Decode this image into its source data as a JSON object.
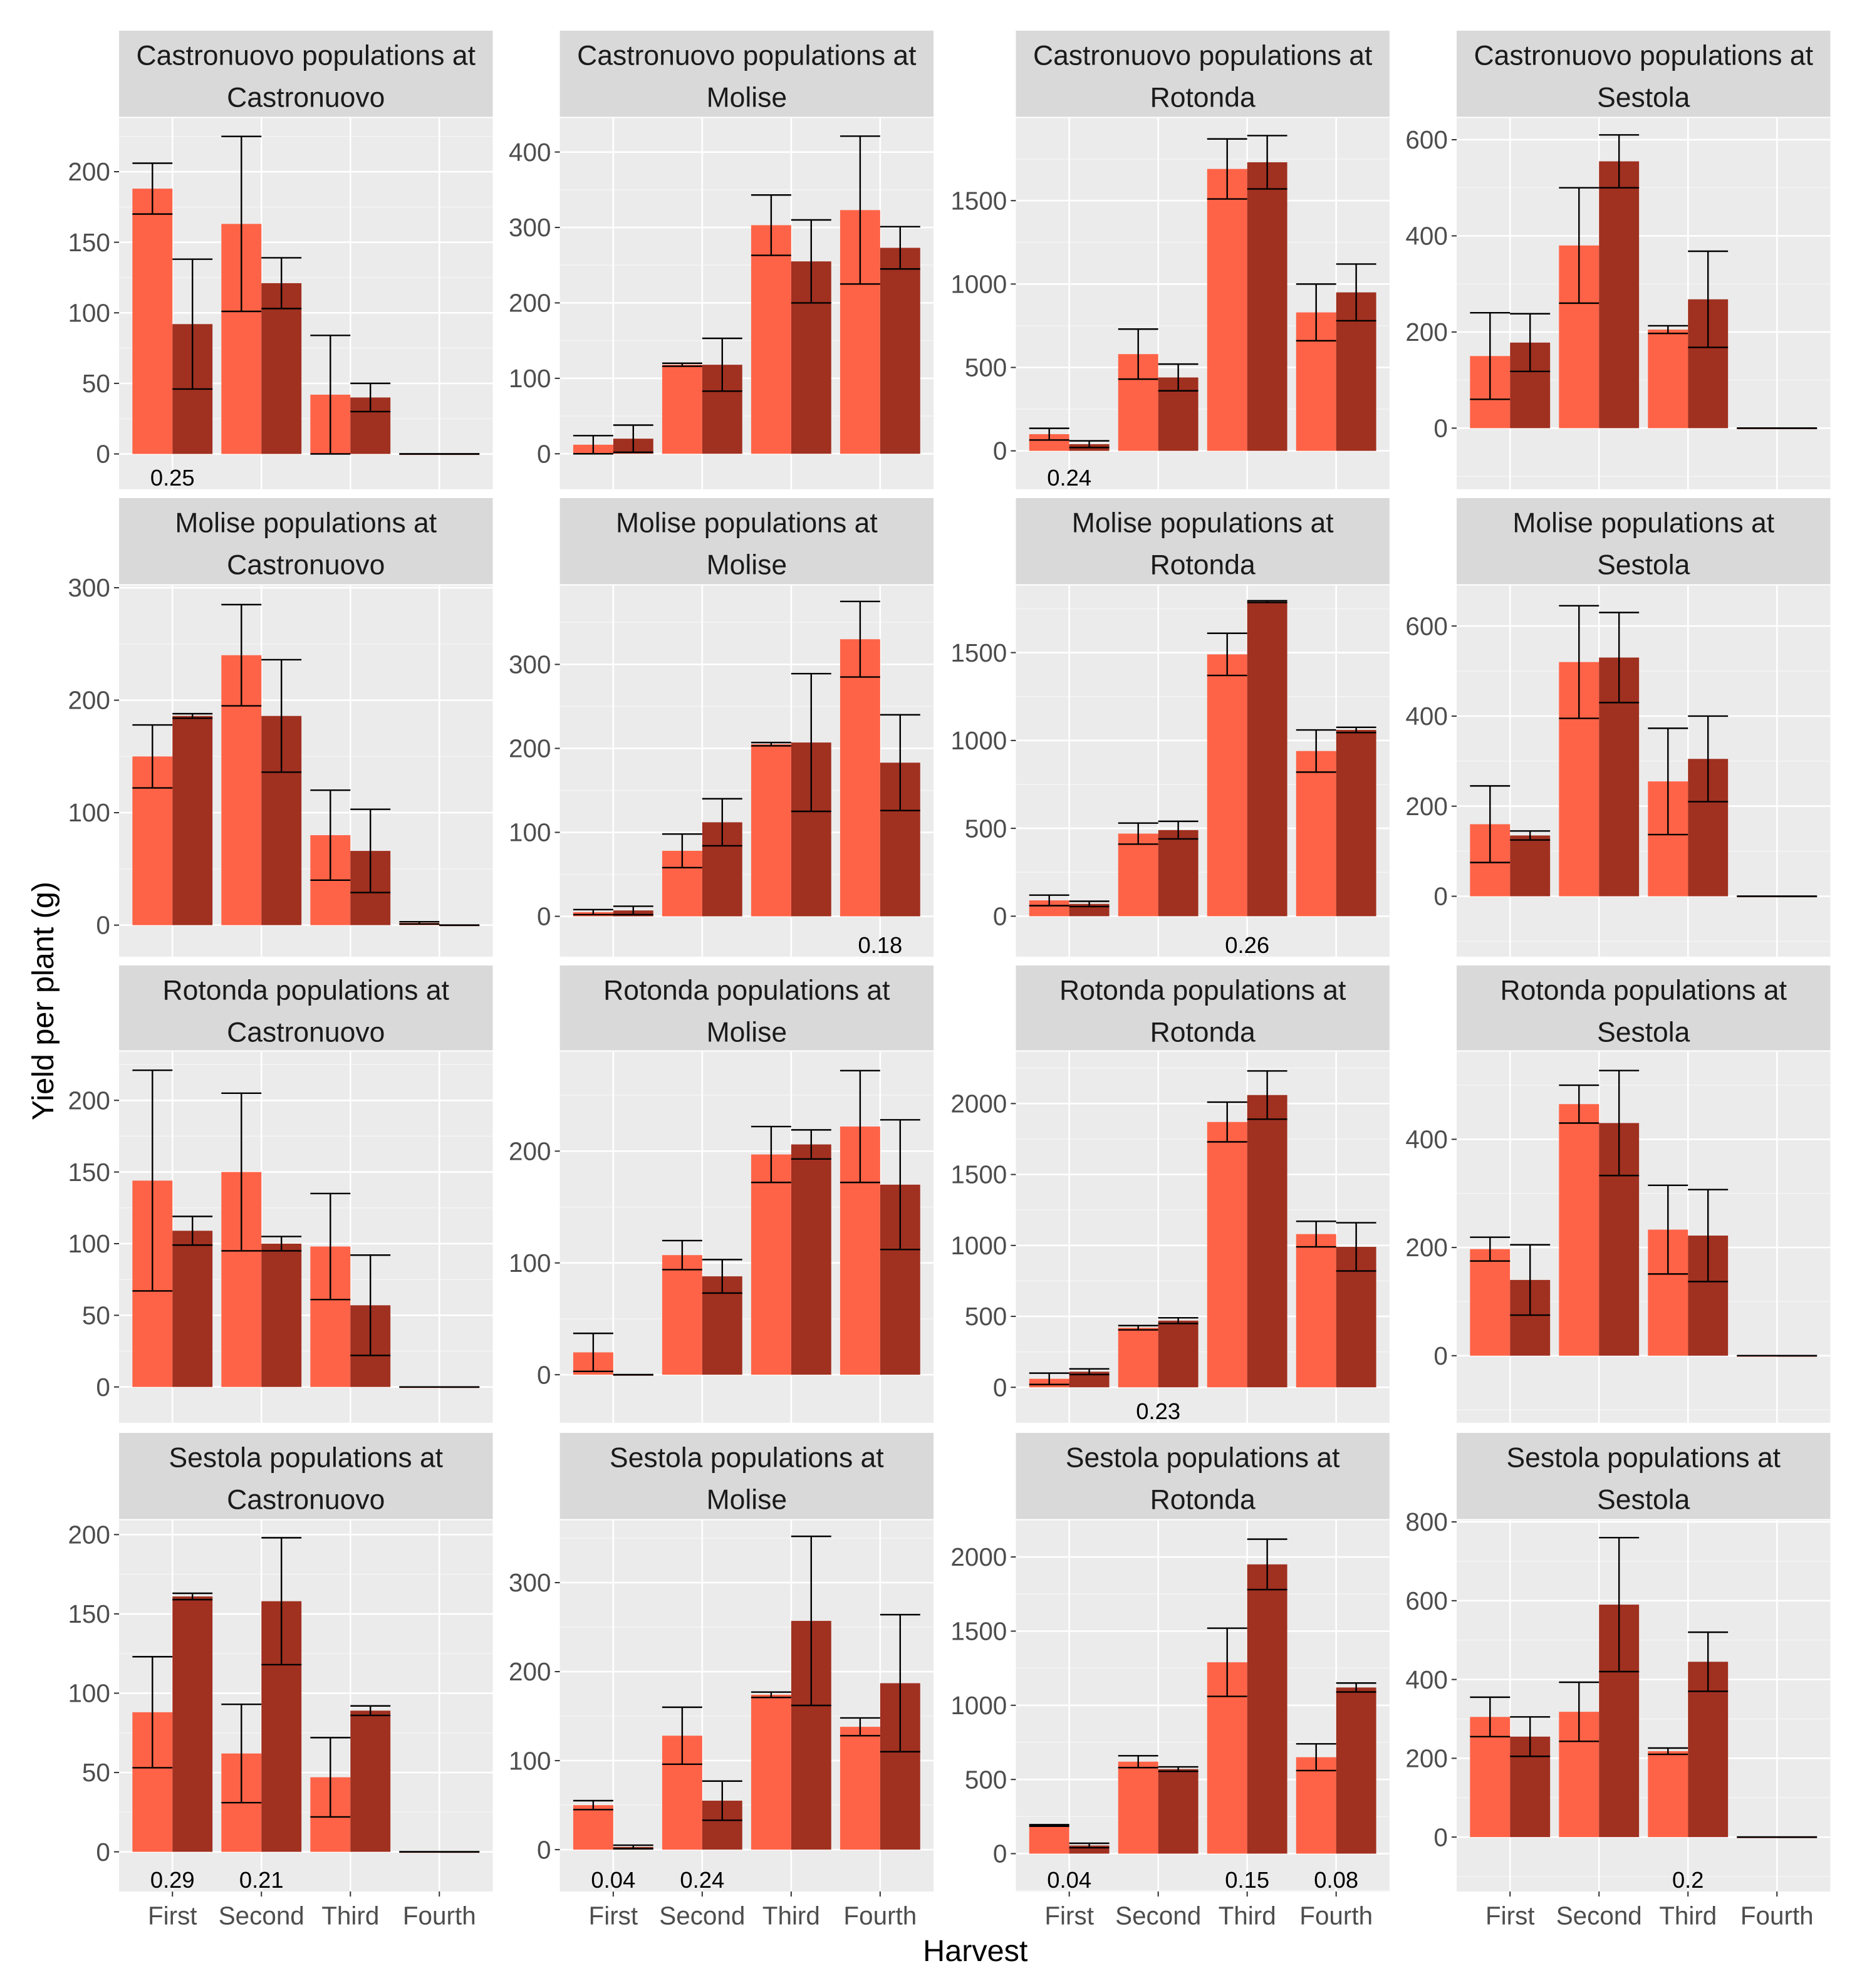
{
  "chart_data": {
    "type": "bar",
    "layout": "facet-grid 4x4",
    "xlabel": "Harvest",
    "ylabel": "Yield per plant (g)",
    "categories": [
      "First",
      "Second",
      "Third",
      "Fourth"
    ],
    "series_colors": [
      "#FF6347",
      "#A03020"
    ],
    "panel_bg": "#EBEBEB",
    "strip_bg": "#D9D9D9",
    "grid": true,
    "panels": [
      {
        "title_line1": "Castronuovo populations at",
        "title_line2": "Castronuovo",
        "ylim": [
          -25,
          238
        ],
        "tick_step": 50,
        "series": [
          {
            "values": [
              188,
              163,
              42,
              0
            ],
            "errors": [
              18,
              62,
              42,
              0
            ]
          },
          {
            "values": [
              92,
              121,
              40,
              0
            ],
            "errors": [
              46,
              18,
              10,
              0
            ]
          }
        ],
        "annotations": [
          {
            "category": "First",
            "text": "0.25"
          }
        ]
      },
      {
        "title_line1": "Castronuovo populations at",
        "title_line2": "Molise",
        "ylim": [
          -47,
          445
        ],
        "tick_step": 100,
        "series": [
          {
            "values": [
              12,
              118,
              303,
              323
            ],
            "errors": [
              12,
              2,
              40,
              98
            ]
          },
          {
            "values": [
              20,
              118,
              255,
              273
            ],
            "errors": [
              18,
              35,
              55,
              28
            ]
          }
        ],
        "annotations": []
      },
      {
        "title_line1": "Castronuovo populations at",
        "title_line2": "Rotonda",
        "ylim": [
          -230,
          1995
        ],
        "tick_step": 500,
        "series": [
          {
            "values": [
              100,
              580,
              1690,
              830
            ],
            "errors": [
              35,
              150,
              180,
              170
            ]
          },
          {
            "values": [
              40,
              440,
              1730,
              950
            ],
            "errors": [
              20,
              80,
              160,
              170
            ]
          }
        ],
        "annotations": [
          {
            "category": "First",
            "text": "0.24"
          }
        ]
      },
      {
        "title_line1": "Castronuovo populations at",
        "title_line2": "Sestola",
        "ylim": [
          -127,
          645
        ],
        "tick_step": 200,
        "series": [
          {
            "values": [
              150,
              380,
              205,
              0
            ],
            "errors": [
              90,
              120,
              8,
              0
            ]
          },
          {
            "values": [
              178,
              555,
              268,
              0
            ],
            "errors": [
              60,
              55,
              100,
              0
            ]
          }
        ],
        "annotations": []
      },
      {
        "title_line1": "Molise populations at",
        "title_line2": "Castronuovo",
        "ylim": [
          -28,
          302
        ],
        "tick_step": 100,
        "series": [
          {
            "values": [
              150,
              240,
              80,
              2
            ],
            "errors": [
              28,
              45,
              40,
              1
            ]
          },
          {
            "values": [
              186,
              186,
              66,
              0
            ],
            "errors": [
              2,
              50,
              37,
              0
            ]
          }
        ],
        "annotations": []
      },
      {
        "title_line1": "Molise populations at",
        "title_line2": "Molise",
        "ylim": [
          -48,
          394
        ],
        "tick_step": 100,
        "series": [
          {
            "values": [
              5,
              78,
              205,
              330
            ],
            "errors": [
              3,
              20,
              2,
              45
            ]
          },
          {
            "values": [
              7,
              112,
              207,
              183
            ],
            "errors": [
              5,
              28,
              82,
              57
            ]
          }
        ],
        "annotations": [
          {
            "category": "Fourth",
            "text": "0.18"
          }
        ]
      },
      {
        "title_line1": "Molise populations at",
        "title_line2": "Rotonda",
        "ylim": [
          -230,
          1882
        ],
        "tick_step": 500,
        "series": [
          {
            "values": [
              90,
              470,
              1490,
              940
            ],
            "errors": [
              30,
              60,
              120,
              120
            ]
          },
          {
            "values": [
              70,
              490,
              1790,
              1060
            ],
            "errors": [
              15,
              50,
              5,
              15
            ]
          }
        ],
        "annotations": [
          {
            "category": "Third",
            "text": "0.26"
          }
        ]
      },
      {
        "title_line1": "Molise populations at",
        "title_line2": "Sestola",
        "ylim": [
          -134,
          690
        ],
        "tick_step": 200,
        "series": [
          {
            "values": [
              160,
              520,
              255,
              0
            ],
            "errors": [
              85,
              125,
              118,
              0
            ]
          },
          {
            "values": [
              135,
              530,
              305,
              0
            ],
            "errors": [
              10,
              100,
              95,
              0
            ]
          }
        ],
        "annotations": []
      },
      {
        "title_line1": "Rotonda populations at",
        "title_line2": "Castronuovo",
        "ylim": [
          -25,
          234
        ],
        "tick_step": 50,
        "series": [
          {
            "values": [
              144,
              150,
              98,
              0
            ],
            "errors": [
              77,
              55,
              37,
              0
            ]
          },
          {
            "values": [
              109,
              100,
              57,
              0
            ],
            "errors": [
              10,
              5,
              35,
              0
            ]
          }
        ],
        "annotations": []
      },
      {
        "title_line1": "Rotonda populations at",
        "title_line2": "Molise",
        "ylim": [
          -43,
          289
        ],
        "tick_step": 100,
        "series": [
          {
            "values": [
              20,
              107,
              197,
              222
            ],
            "errors": [
              17,
              13,
              25,
              50
            ]
          },
          {
            "values": [
              0,
              88,
              206,
              170
            ],
            "errors": [
              0,
              15,
              13,
              58
            ]
          }
        ],
        "annotations": []
      },
      {
        "title_line1": "Rotonda populations at",
        "title_line2": "Rotonda",
        "ylim": [
          -250,
          2366
        ],
        "tick_step": 500,
        "series": [
          {
            "values": [
              60,
              420,
              1870,
              1080
            ],
            "errors": [
              40,
              15,
              140,
              90
            ]
          },
          {
            "values": [
              110,
              470,
              2060,
              990
            ],
            "errors": [
              20,
              20,
              170,
              170
            ]
          }
        ],
        "annotations": [
          {
            "category": "Second",
            "text": "0.23"
          }
        ]
      },
      {
        "title_line1": "Rotonda populations at",
        "title_line2": "Sestola",
        "ylim": [
          -124,
          562
        ],
        "tick_step": 200,
        "series": [
          {
            "values": [
              197,
              465,
              233,
              0
            ],
            "errors": [
              22,
              35,
              82,
              0
            ]
          },
          {
            "values": [
              140,
              430,
              222,
              0
            ],
            "errors": [
              65,
              97,
              85,
              0
            ]
          }
        ],
        "annotations": []
      },
      {
        "title_line1": "Sestola populations at",
        "title_line2": "Castronuovo",
        "ylim": [
          -25,
          209
        ],
        "tick_step": 50,
        "series": [
          {
            "values": [
              88,
              62,
              47,
              0
            ],
            "errors": [
              35,
              31,
              25,
              0
            ]
          },
          {
            "values": [
              161,
              158,
              89,
              0
            ],
            "errors": [
              2,
              40,
              3,
              0
            ]
          }
        ],
        "annotations": [
          {
            "category": "First",
            "text": "0.29"
          },
          {
            "category": "Second",
            "text": "0.21"
          }
        ]
      },
      {
        "title_line1": "Sestola populations at",
        "title_line2": "Molise",
        "ylim": [
          -47,
          370
        ],
        "tick_step": 100,
        "series": [
          {
            "values": [
              50,
              128,
              174,
              138
            ],
            "errors": [
              5,
              32,
              3,
              10
            ]
          },
          {
            "values": [
              3,
              55,
              257,
              187
            ],
            "errors": [
              2,
              22,
              95,
              77
            ]
          }
        ],
        "annotations": [
          {
            "category": "First",
            "text": "0.04"
          },
          {
            "category": "Second",
            "text": "0.24"
          }
        ]
      },
      {
        "title_line1": "Sestola populations at",
        "title_line2": "Rotonda",
        "ylim": [
          -255,
          2247
        ],
        "tick_step": 500,
        "series": [
          {
            "values": [
              190,
              620,
              1290,
              650
            ],
            "errors": [
              5,
              40,
              230,
              90
            ]
          },
          {
            "values": [
              55,
              570,
              1950,
              1120
            ],
            "errors": [
              15,
              15,
              170,
              30
            ]
          }
        ],
        "annotations": [
          {
            "category": "First",
            "text": "0.04"
          },
          {
            "category": "Third",
            "text": "0.15"
          },
          {
            "category": "Fourth",
            "text": "0.08"
          }
        ]
      },
      {
        "title_line1": "Sestola populations at",
        "title_line2": "Sestola",
        "ylim": [
          -138,
          804
        ],
        "tick_step": 200,
        "series": [
          {
            "values": [
              305,
              318,
              218,
              0
            ],
            "errors": [
              50,
              75,
              8,
              0
            ]
          },
          {
            "values": [
              255,
              590,
              445,
              0
            ],
            "errors": [
              50,
              170,
              75,
              0
            ]
          }
        ],
        "annotations": [
          {
            "category": "Third",
            "text": "0.2"
          }
        ]
      }
    ]
  }
}
